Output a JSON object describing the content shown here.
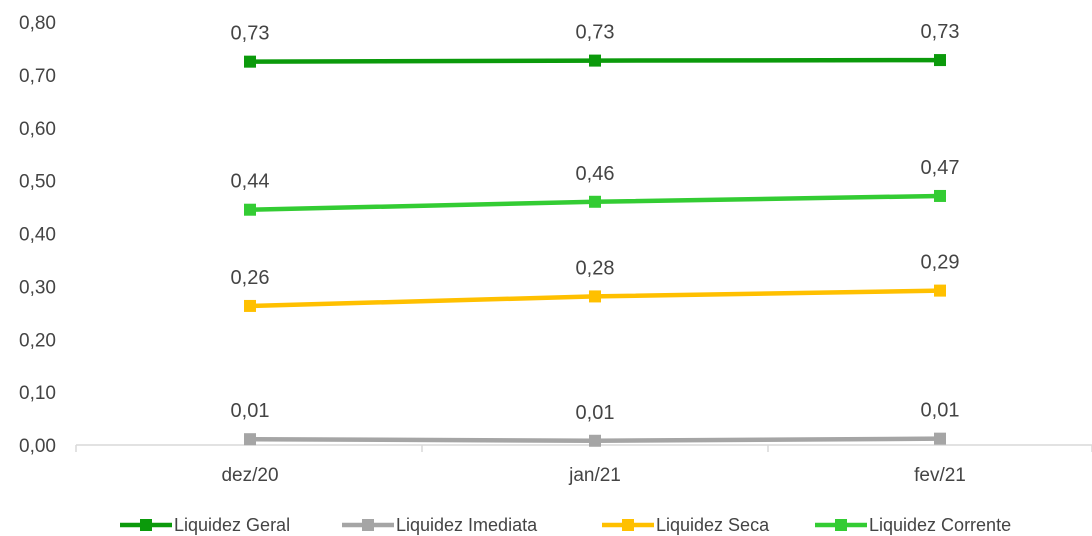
{
  "chart_data": {
    "type": "line",
    "title": "",
    "xlabel": "",
    "ylabel": "",
    "categories": [
      "dez/20",
      "jan/21",
      "fev/21"
    ],
    "ylim": [
      0,
      0.8
    ],
    "yticks": [
      0.0,
      0.1,
      0.2,
      0.3,
      0.4,
      0.5,
      0.6,
      0.7,
      0.8
    ],
    "ytick_labels": [
      "0,00",
      "0,10",
      "0,20",
      "0,30",
      "0,40",
      "0,50",
      "0,60",
      "0,70",
      "0,80"
    ],
    "grid": false,
    "legend_position": "bottom",
    "series": [
      {
        "name": "Liquidez Geral",
        "color": "#0b9a0b",
        "values": [
          0.725,
          0.727,
          0.728
        ],
        "labels": [
          "0,73",
          "0,73",
          "0,73"
        ]
      },
      {
        "name": "Liquidez  Imediata",
        "color": "#a5a5a5",
        "values": [
          0.011,
          0.008,
          0.012
        ],
        "labels": [
          "0,01",
          "0,01",
          "0,01"
        ]
      },
      {
        "name": "Liquidez Seca",
        "color": "#ffc000",
        "values": [
          0.263,
          0.281,
          0.292
        ],
        "labels": [
          "0,26",
          "0,28",
          "0,29"
        ]
      },
      {
        "name": "Liquidez Corrente",
        "color": "#33cc33",
        "values": [
          0.445,
          0.46,
          0.471
        ],
        "labels": [
          "0,44",
          "0,46",
          "0,47"
        ]
      }
    ]
  }
}
